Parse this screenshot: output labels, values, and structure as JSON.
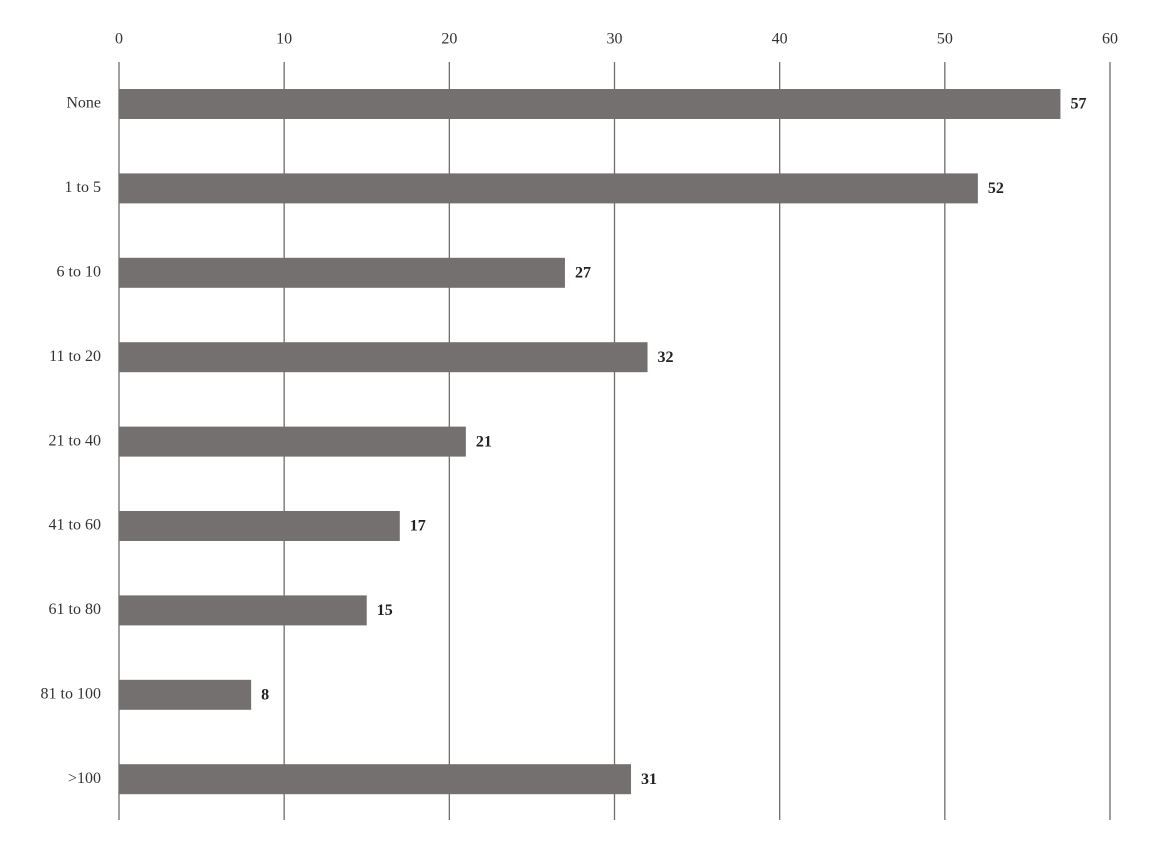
{
  "chart_data": {
    "type": "barh",
    "categories": [
      "None",
      "1 to 5",
      "6 to 10",
      "11 to 20",
      "21 to 40",
      "41 to 60",
      "61 to 80",
      "81 to 100",
      ">100"
    ],
    "values": [
      57,
      52,
      27,
      32,
      21,
      17,
      15,
      8,
      31
    ],
    "color": "#757070",
    "xlim": [
      0,
      60
    ],
    "xticks": [
      0,
      10,
      20,
      30,
      40,
      50,
      60
    ],
    "grid": true
  }
}
